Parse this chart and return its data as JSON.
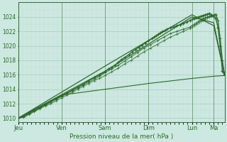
{
  "xlabel": "Pression niveau de la mer( hPa )",
  "bg_color": "#cce8e0",
  "plot_bg_color": "#cce8e0",
  "grid_color_major": "#aaccbb",
  "grid_color_minor": "#c0ddd5",
  "line_color": "#2d6b2d",
  "ylim": [
    1009.5,
    1026.0
  ],
  "yticks": [
    1010,
    1012,
    1014,
    1016,
    1018,
    1020,
    1022,
    1024
  ],
  "day_labels": [
    "Jeu",
    "Ven",
    "Sam",
    "Dim",
    "Lun",
    "Ma"
  ],
  "day_positions": [
    0,
    0.2,
    0.4,
    0.6,
    0.8,
    0.9
  ],
  "xlim": [
    0.0,
    0.95
  ],
  "series": {
    "main_markers": {
      "x": [
        0.0,
        0.025,
        0.05,
        0.075,
        0.1,
        0.125,
        0.15,
        0.175,
        0.2,
        0.225,
        0.25,
        0.275,
        0.3,
        0.325,
        0.35,
        0.375,
        0.4,
        0.415,
        0.43,
        0.445,
        0.46,
        0.475,
        0.49,
        0.51,
        0.525,
        0.54,
        0.555,
        0.57,
        0.585,
        0.6,
        0.615,
        0.625,
        0.635,
        0.645,
        0.655,
        0.665,
        0.675,
        0.685,
        0.7,
        0.715,
        0.73,
        0.745,
        0.76,
        0.775,
        0.79,
        0.8,
        0.81,
        0.82,
        0.83,
        0.84,
        0.85,
        0.86,
        0.87,
        0.88,
        0.89,
        0.9,
        0.91,
        0.92,
        0.93,
        0.94,
        0.95
      ],
      "y": [
        1010.0,
        1010.3,
        1010.7,
        1011.1,
        1011.5,
        1011.9,
        1012.3,
        1012.7,
        1013.1,
        1013.5,
        1013.9,
        1014.3,
        1014.7,
        1015.2,
        1015.6,
        1016.0,
        1016.4,
        1016.8,
        1017.0,
        1017.3,
        1017.7,
        1018.1,
        1018.4,
        1018.8,
        1019.2,
        1019.5,
        1019.8,
        1020.1,
        1020.4,
        1020.7,
        1021.0,
        1021.2,
        1021.4,
        1021.6,
        1021.8,
        1022.0,
        1022.1,
        1022.3,
        1022.5,
        1022.6,
        1022.8,
        1022.9,
        1023.1,
        1023.3,
        1023.5,
        1023.7,
        1023.8,
        1023.9,
        1024.0,
        1024.1,
        1024.2,
        1024.3,
        1024.4,
        1024.5,
        1024.3,
        1024.1,
        1023.8,
        1022.5,
        1020.0,
        1016.5,
        1016.0
      ]
    },
    "line_upper1": {
      "x": [
        0.0,
        0.4,
        0.8,
        0.9,
        0.95
      ],
      "y": [
        1010.0,
        1016.5,
        1024.0,
        1023.2,
        1016.0
      ]
    },
    "line_upper2": {
      "x": [
        0.0,
        0.4,
        0.8,
        0.9,
        0.95
      ],
      "y": [
        1010.0,
        1017.2,
        1024.3,
        1022.8,
        1016.0
      ]
    },
    "line_lower": {
      "x": [
        0.0,
        0.2,
        0.4,
        0.6,
        0.8,
        0.9,
        0.95
      ],
      "y": [
        1010.0,
        1013.2,
        1014.0,
        1014.8,
        1015.5,
        1015.8,
        1015.9
      ]
    },
    "dotted2": {
      "x": [
        0.0,
        0.025,
        0.05,
        0.075,
        0.1,
        0.125,
        0.15,
        0.175,
        0.2,
        0.225,
        0.25,
        0.275,
        0.3,
        0.325,
        0.35,
        0.375,
        0.4,
        0.43,
        0.46,
        0.49,
        0.52,
        0.55,
        0.58,
        0.61,
        0.64,
        0.67,
        0.7,
        0.73,
        0.76,
        0.79,
        0.8,
        0.81,
        0.82,
        0.83,
        0.84,
        0.85,
        0.86,
        0.87,
        0.88,
        0.89,
        0.9,
        0.91,
        0.92,
        0.93,
        0.94,
        0.95
      ],
      "y": [
        1010.0,
        1010.2,
        1010.6,
        1011.0,
        1011.4,
        1011.8,
        1012.2,
        1012.6,
        1013.0,
        1013.4,
        1013.8,
        1014.2,
        1014.6,
        1015.0,
        1015.4,
        1015.8,
        1016.3,
        1016.8,
        1017.3,
        1017.9,
        1018.5,
        1019.1,
        1019.7,
        1020.2,
        1020.7,
        1021.2,
        1021.7,
        1022.0,
        1022.3,
        1022.6,
        1022.8,
        1023.0,
        1023.2,
        1023.4,
        1023.6,
        1023.8,
        1023.9,
        1024.0,
        1024.1,
        1024.2,
        1024.3,
        1024.4,
        1023.5,
        1021.0,
        1018.0,
        1016.0
      ]
    },
    "dotted3": {
      "x": [
        0.0,
        0.025,
        0.05,
        0.075,
        0.1,
        0.125,
        0.15,
        0.175,
        0.2,
        0.225,
        0.25,
        0.275,
        0.3,
        0.325,
        0.35,
        0.375,
        0.4,
        0.43,
        0.46,
        0.49,
        0.52,
        0.55,
        0.58,
        0.61,
        0.64,
        0.67,
        0.7,
        0.73,
        0.76,
        0.79,
        0.8,
        0.81,
        0.82,
        0.83,
        0.84,
        0.85,
        0.86,
        0.87,
        0.88,
        0.89,
        0.9,
        0.91,
        0.92,
        0.93,
        0.94,
        0.95
      ],
      "y": [
        1010.0,
        1010.1,
        1010.5,
        1010.9,
        1011.3,
        1011.7,
        1012.0,
        1012.4,
        1012.8,
        1013.2,
        1013.6,
        1014.0,
        1014.4,
        1014.8,
        1015.2,
        1015.5,
        1015.9,
        1016.4,
        1016.9,
        1017.5,
        1018.0,
        1018.6,
        1019.2,
        1019.7,
        1020.2,
        1020.7,
        1021.2,
        1021.6,
        1022.0,
        1022.4,
        1022.6,
        1022.8,
        1023.0,
        1023.2,
        1023.4,
        1023.5,
        1023.7,
        1023.9,
        1024.0,
        1024.1,
        1024.2,
        1024.3,
        1023.5,
        1021.0,
        1018.0,
        1016.0
      ]
    }
  }
}
